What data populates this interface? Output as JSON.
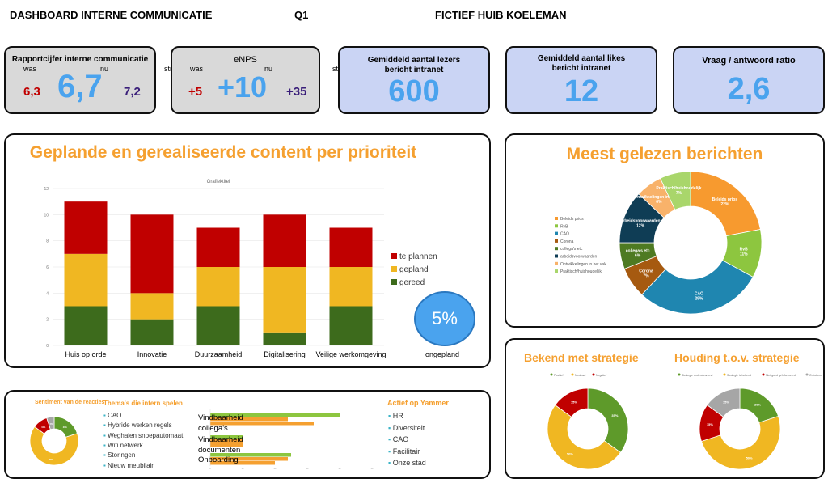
{
  "header": {
    "title": "DASHBOARD INTERNE COMMUNICATIE",
    "period": "Q1",
    "subtitle": "FICTIEF HUIB KOELEMAN"
  },
  "kpis": {
    "rapportcijfer": {
      "title": "Rapportcijfer interne communicatie",
      "was_label": "was",
      "nu_label": "nu",
      "streven_label": "streven",
      "was": "6,3",
      "nu": "6,7",
      "streven": "7,2"
    },
    "enps": {
      "title": "eNPS",
      "was_label": "was",
      "nu_label": "nu",
      "streven_label": "streven",
      "was": "+5",
      "nu": "+10",
      "streven": "+35"
    },
    "lezers": {
      "title": "Gemiddeld aantal lezers bericht intranet",
      "value": "600"
    },
    "likes": {
      "title": "Gemiddeld aantal likes bericht intranet",
      "value": "12"
    },
    "ratio": {
      "title": "Vraag / antwoord ratio",
      "value": "2,6"
    }
  },
  "colors": {
    "was": "#c00000",
    "nu": "#4aa3ee",
    "streven": "#3a1f7a",
    "accent": "#f5a030",
    "card_gray": "#d9d9d9",
    "card_blue": "#cad4f4"
  },
  "content_panel": {
    "title": "Geplande en gerealiseerde content per prioriteit",
    "ongepland_value": "5%",
    "ongepland_label": "ongepland"
  },
  "read_panel": {
    "title": "Meest gelezen berichten"
  },
  "strategy_panel": {
    "bekend_title": "Bekend met strategie",
    "houding_title": "Houding t.o.v. strategie"
  },
  "bottom": {
    "sentiment_title": "Sentiment van de reacties",
    "themes_title": "Thema's die intern spelen",
    "themes": [
      "CAO",
      "Hybride werken regels",
      "Weghalen snoepautomaat",
      "Wifi netwerk",
      "Storingen",
      "Nieuw meubilair"
    ],
    "yammer_title": "Actief op Yammer",
    "yammer": [
      "HR",
      "Diversiteit",
      "CAO",
      "Facilitair",
      "Onze stad"
    ]
  },
  "chart_data": [
    {
      "type": "bar",
      "stacked": true,
      "title": "Grafiektitel",
      "categories": [
        "Huis op orde",
        "Innovatie",
        "Duurzaamheid",
        "Digitalisering",
        "Veilige werkomgeving"
      ],
      "series": [
        {
          "name": "gereed",
          "color": "#3d6b1c",
          "values": [
            3,
            2,
            3,
            1,
            3
          ]
        },
        {
          "name": "gepland",
          "color": "#f0b722",
          "values": [
            4,
            2,
            3,
            5,
            3
          ]
        },
        {
          "name": "te plannen",
          "color": "#c00000",
          "values": [
            4,
            6,
            3,
            4,
            3
          ]
        }
      ],
      "ylim": [
        0,
        12
      ],
      "yticks": [
        0,
        2,
        4,
        6,
        8,
        10,
        12
      ],
      "grid": true,
      "legend": "right"
    },
    {
      "type": "pie",
      "donut": true,
      "legend": "left",
      "slices": [
        {
          "label": "Beleids prios",
          "value": 22,
          "color": "#f79a2f"
        },
        {
          "label": "RvB",
          "value": 11,
          "color": "#8dc63f"
        },
        {
          "label": "CAO",
          "value": 29,
          "color": "#1f86b0"
        },
        {
          "label": "Corona",
          "value": 7,
          "color": "#a65a10"
        },
        {
          "label": "collega's etc",
          "value": 6,
          "color": "#4e7a22"
        },
        {
          "label": "arbeidsvoorwaarden",
          "value": 12,
          "color": "#0f3d55"
        },
        {
          "label": "Ontwikkelingen in het vak",
          "value": 6,
          "color": "#f8b26a"
        },
        {
          "label": "Praktisch/huishoudelijk",
          "value": 7,
          "color": "#a9d66b"
        }
      ]
    },
    {
      "type": "pie",
      "donut": true,
      "legend": "top",
      "slices": [
        {
          "label": "Positief",
          "value": 35,
          "color": "#5e9a2a"
        },
        {
          "label": "Neutraal",
          "value": 50,
          "color": "#f0b722"
        },
        {
          "label": "Negatief",
          "value": 15,
          "color": "#c00000"
        }
      ]
    },
    {
      "type": "pie",
      "donut": true,
      "legend": "top",
      "slices": [
        {
          "label": "Strategie ondersteunend",
          "value": 20,
          "color": "#5e9a2a"
        },
        {
          "label": "Strategie is bekend",
          "value": 50,
          "color": "#f0b722"
        },
        {
          "label": "Niet goed geïnformeerd",
          "value": 15,
          "color": "#c00000"
        },
        {
          "label": "Onbekend",
          "value": 15,
          "color": "#a6a6a6"
        }
      ]
    },
    {
      "type": "pie",
      "donut": true,
      "slices": [
        {
          "label": "Positief",
          "value": 20,
          "color": "#5e9a2a"
        },
        {
          "label": "Neutraal",
          "value": 65,
          "color": "#f0b722"
        },
        {
          "label": "Negatief",
          "value": 10,
          "color": "#c00000"
        },
        {
          "label": "Onbekend",
          "value": 5,
          "color": "#a6a6a6"
        }
      ]
    },
    {
      "type": "bar",
      "orientation": "horizontal",
      "categories": [
        "Vindbaarheid collega's",
        "Vindbaarheid documenten",
        "Onboarding"
      ],
      "series": [
        {
          "color": "#8dc63f",
          "values": [
            40,
            10,
            25
          ]
        },
        {
          "color": "#f5a030",
          "values": [
            24,
            10,
            24
          ]
        },
        {
          "color": "#f5a030",
          "values": [
            32,
            10,
            20
          ]
        }
      ],
      "xlim": [
        0,
        50
      ]
    }
  ]
}
